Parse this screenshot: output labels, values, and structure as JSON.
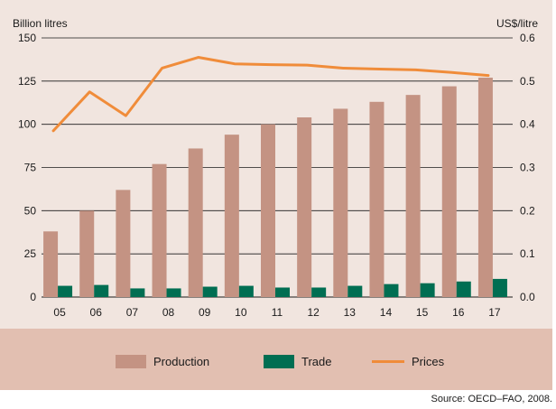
{
  "chart_data": {
    "type": "bar",
    "categories": [
      "05",
      "06",
      "07",
      "08",
      "09",
      "10",
      "11",
      "12",
      "13",
      "14",
      "15",
      "16",
      "17"
    ],
    "series": [
      {
        "name": "Production",
        "kind": "bar",
        "axis": "left",
        "color": "#c49383",
        "values": [
          38,
          50,
          62,
          77,
          86,
          94,
          100,
          104,
          109,
          113,
          117,
          122,
          127
        ]
      },
      {
        "name": "Trade",
        "kind": "bar",
        "axis": "left",
        "color": "#006e52",
        "values": [
          6.5,
          7,
          5,
          5,
          6,
          6.5,
          5.5,
          5.5,
          6.5,
          7.5,
          8,
          9,
          10.5
        ]
      },
      {
        "name": "Prices",
        "kind": "line",
        "axis": "right",
        "color": "#f08c3a",
        "values": [
          0.385,
          0.475,
          0.42,
          0.53,
          0.555,
          0.54,
          0.538,
          0.537,
          0.53,
          0.528,
          0.526,
          0.52,
          0.513
        ]
      }
    ],
    "ylabel": "Billion litres",
    "y2label": "US$/litre",
    "ylim": [
      0,
      150
    ],
    "y2lim": [
      0,
      0.6
    ],
    "yticks": [
      "0",
      "25",
      "50",
      "75",
      "100",
      "125",
      "150"
    ],
    "y2ticks": [
      "0.0",
      "0.1",
      "0.2",
      "0.3",
      "0.4",
      "0.5",
      "0.6"
    ],
    "grid": true,
    "legend": "bottom"
  },
  "source": "Source: OECD–FAO, 2008."
}
